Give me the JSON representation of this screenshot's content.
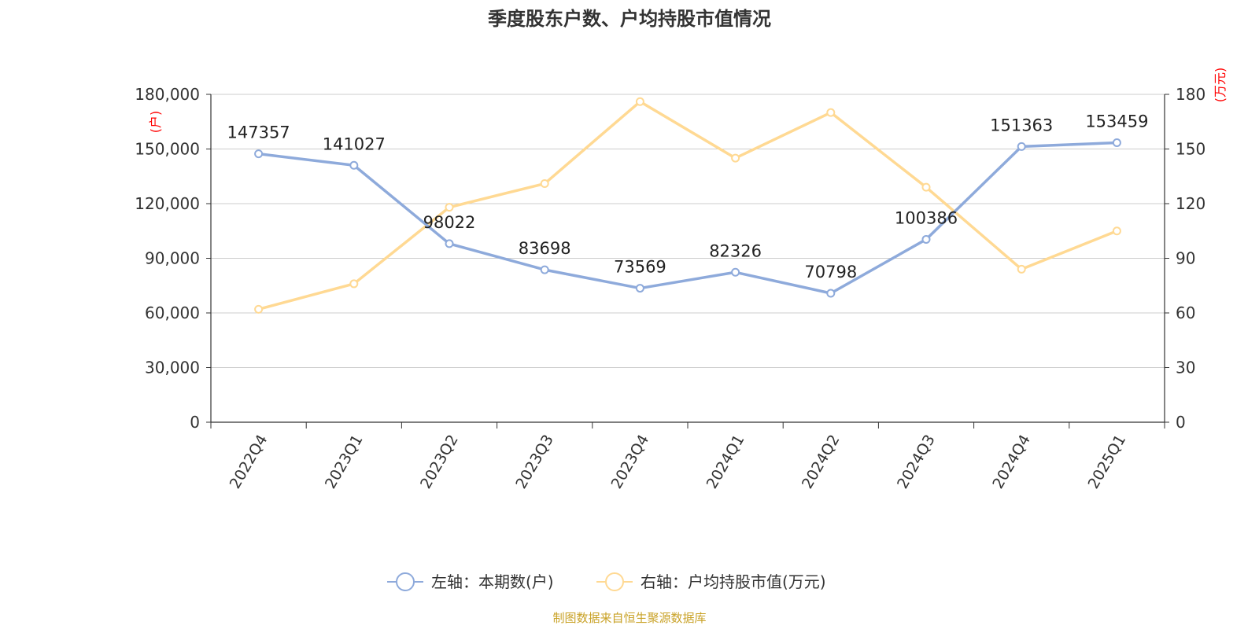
{
  "chart_data": {
    "type": "line",
    "title": "季度股东户数、户均持股市值情况",
    "categories": [
      "2022Q4",
      "2023Q1",
      "2023Q2",
      "2023Q3",
      "2023Q4",
      "2024Q1",
      "2024Q2",
      "2024Q3",
      "2024Q4",
      "2025Q1"
    ],
    "left_axis": {
      "unit_label": "(户)",
      "ylim": [
        0,
        180000
      ],
      "ticks": [
        "0",
        "30,000",
        "60,000",
        "90,000",
        "120,000",
        "150,000",
        "180,000"
      ]
    },
    "right_axis": {
      "unit_label": "(万元)",
      "ylim": [
        0,
        180
      ],
      "ticks": [
        "0",
        "30",
        "60",
        "90",
        "120",
        "150",
        "180"
      ]
    },
    "series": [
      {
        "name": "左轴：本期数(户)",
        "axis": "left",
        "color": "#8eaadb",
        "values": [
          147357,
          141027,
          98022,
          83698,
          73569,
          82326,
          70798,
          100386,
          151363,
          153459
        ],
        "data_labels": [
          "147357",
          "141027",
          "98022",
          "83698",
          "73569",
          "82326",
          "70798",
          "100386",
          "151363",
          "153459"
        ]
      },
      {
        "name": "右轴：户均持股市值(万元)",
        "axis": "right",
        "color": "#ffd993",
        "values": [
          62,
          76,
          118,
          131,
          176,
          145,
          170,
          129,
          84,
          105
        ]
      }
    ],
    "grid": true,
    "legend_position": "bottom"
  },
  "source": "制图数据来自恒生聚源数据库"
}
